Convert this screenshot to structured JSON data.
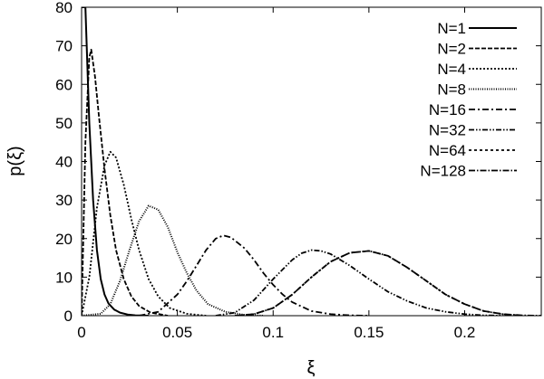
{
  "chart_data": {
    "type": "line",
    "xlabel": "ξ",
    "ylabel": "p(ξ)",
    "xlim": [
      0,
      0.24
    ],
    "ylim": [
      0,
      80
    ],
    "x_ticks": [
      0,
      0.05,
      0.1,
      0.15,
      0.2
    ],
    "x_tick_labels": [
      "0",
      "0.05",
      "0.1",
      "0.15",
      "0.2"
    ],
    "y_ticks": [
      0,
      10,
      20,
      30,
      40,
      50,
      60,
      70,
      80
    ],
    "y_tick_labels": [
      "0",
      "10",
      "20",
      "30",
      "40",
      "50",
      "60",
      "70",
      "80"
    ],
    "grid": false,
    "legend_position": "top-right",
    "series": [
      {
        "name": "N=1",
        "dash": "",
        "width": 2.0,
        "x": [
          0.0,
          0.002,
          0.004,
          0.006,
          0.008,
          0.01,
          0.012,
          0.014,
          0.017,
          0.02,
          0.024,
          0.028,
          0.035
        ],
        "y": [
          80,
          80,
          50,
          30,
          17,
          9.5,
          5.5,
          3.2,
          1.6,
          0.8,
          0.3,
          0.1,
          0
        ]
      },
      {
        "name": "N=2",
        "dash": "5,2",
        "width": 1.8,
        "x": [
          0.0,
          0.002,
          0.004,
          0.005,
          0.007,
          0.009,
          0.012,
          0.015,
          0.018,
          0.022,
          0.026,
          0.03,
          0.036,
          0.045
        ],
        "y": [
          0,
          45,
          67,
          69,
          62,
          52,
          38,
          26,
          17,
          9.5,
          5,
          2.5,
          0.8,
          0
        ]
      },
      {
        "name": "N=4",
        "dash": "2,2",
        "width": 1.8,
        "x": [
          0.0,
          0.004,
          0.008,
          0.012,
          0.015,
          0.018,
          0.022,
          0.026,
          0.03,
          0.035,
          0.04,
          0.046,
          0.055,
          0.065
        ],
        "y": [
          0,
          10,
          28,
          39,
          42.5,
          41,
          34,
          25,
          17,
          9.5,
          5,
          2,
          0.5,
          0
        ]
      },
      {
        "name": "N=8",
        "dash": "1,1.5",
        "width": 2.0,
        "x": [
          0.0,
          0.01,
          0.015,
          0.02,
          0.025,
          0.03,
          0.035,
          0.04,
          0.045,
          0.05,
          0.055,
          0.06,
          0.066,
          0.075,
          0.085,
          0.095
        ],
        "y": [
          0,
          0.5,
          3,
          9,
          17,
          24.5,
          28.5,
          27.5,
          23,
          16.5,
          11,
          6.5,
          3,
          1,
          0.2,
          0
        ]
      },
      {
        "name": "N=16",
        "dash": "7,3,2,3",
        "width": 1.8,
        "x": [
          0.03,
          0.04,
          0.05,
          0.055,
          0.06,
          0.065,
          0.07,
          0.074,
          0.078,
          0.085,
          0.09,
          0.095,
          0.1,
          0.105,
          0.11,
          0.12,
          0.13,
          0.14,
          0.15
        ],
        "y": [
          0,
          1,
          5.5,
          9,
          13,
          17,
          20,
          20.8,
          20.3,
          17.5,
          14.5,
          11,
          8,
          5.5,
          3.5,
          1.2,
          0.4,
          0.1,
          0
        ]
      },
      {
        "name": "N=32",
        "dash": "6,2,1.5,2,1.5,2",
        "width": 1.8,
        "x": [
          0.07,
          0.08,
          0.09,
          0.1,
          0.11,
          0.115,
          0.12,
          0.125,
          0.13,
          0.14,
          0.15,
          0.16,
          0.17,
          0.18,
          0.19,
          0.2,
          0.21,
          0.22
        ],
        "y": [
          0,
          0.8,
          4,
          9.5,
          14.5,
          16.2,
          17,
          16.8,
          16,
          13,
          9.5,
          6.2,
          3.8,
          2,
          1,
          0.4,
          0.1,
          0
        ]
      },
      {
        "name": "N=64",
        "dash": "3,3",
        "width": 1.8,
        "x": [
          0.08,
          0.09,
          0.1,
          0.11,
          0.12,
          0.13,
          0.14,
          0.15,
          0.16,
          0.17,
          0.18,
          0.19,
          0.2,
          0.21,
          0.22,
          0.23
        ],
        "y": [
          0,
          0.4,
          2,
          5.5,
          10,
          14,
          16.3,
          16.8,
          15.5,
          12.5,
          9,
          5.5,
          3,
          1.2,
          0.4,
          0
        ]
      },
      {
        "name": "N=128",
        "dash": "7,2,1.5,2",
        "width": 1.8,
        "x": [
          0.08,
          0.09,
          0.1,
          0.11,
          0.12,
          0.13,
          0.14,
          0.15,
          0.16,
          0.17,
          0.18,
          0.19,
          0.2,
          0.21,
          0.22,
          0.23,
          0.24
        ],
        "y": [
          0,
          0.4,
          2,
          5.5,
          10,
          14,
          16.3,
          16.8,
          15.5,
          12.5,
          9,
          5.5,
          3,
          1.2,
          0.4,
          0.1,
          0
        ]
      }
    ]
  }
}
